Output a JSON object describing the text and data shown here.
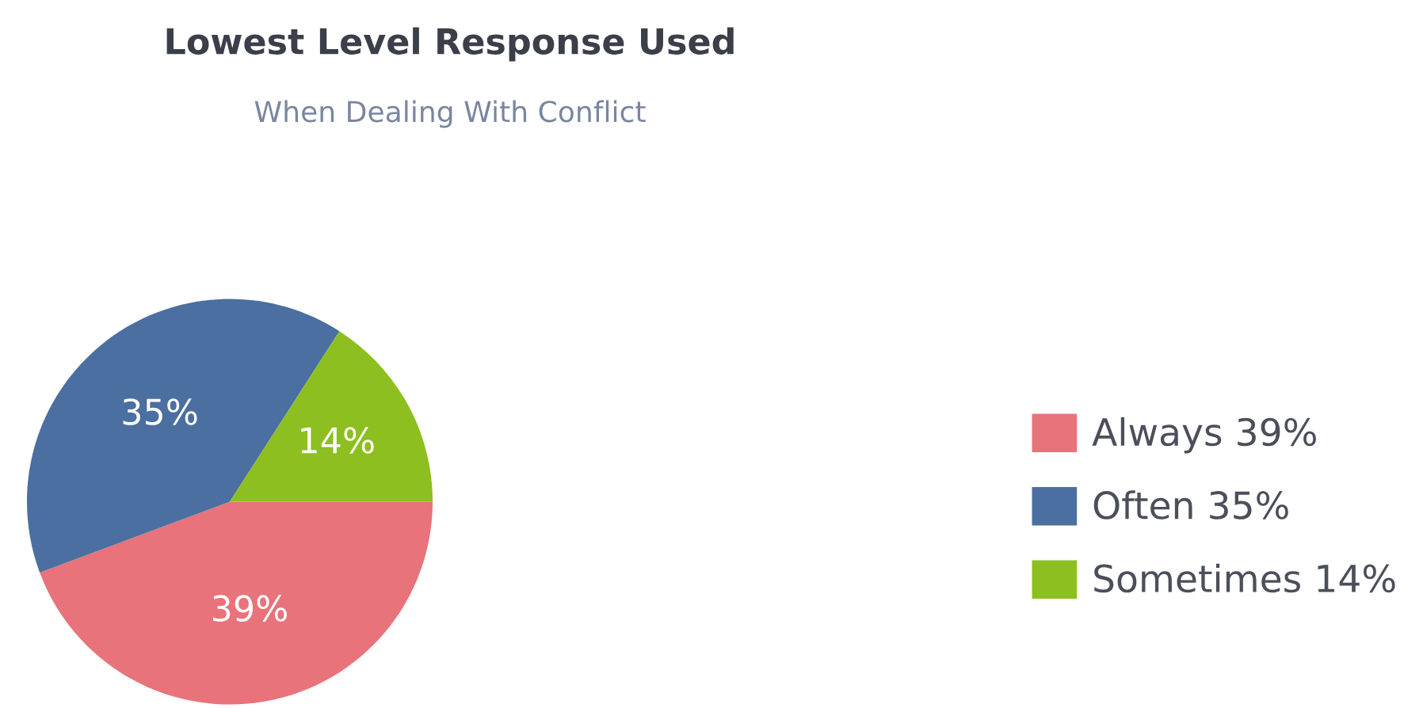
{
  "chart_data": {
    "type": "pie",
    "title": "Lowest Level Response Used",
    "subtitle": "When Dealing With Conflict",
    "categories": [
      "Always",
      "Often",
      "Sometimes"
    ],
    "values": [
      39,
      35,
      14
    ],
    "value_labels": [
      "39%",
      "35%",
      "14%"
    ],
    "colors": [
      "#e8737a",
      "#4a6fa0",
      "#8cbf1f"
    ],
    "data_labels": true,
    "legend": "right"
  }
}
